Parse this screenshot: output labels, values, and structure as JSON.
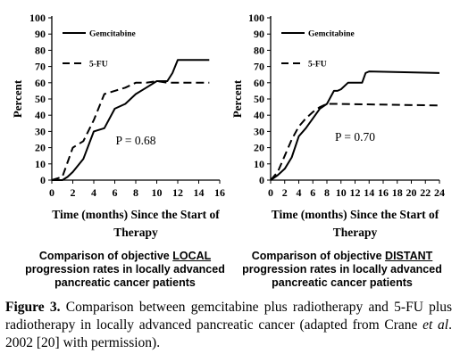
{
  "figure": {
    "caption_label": "Figure 3.",
    "caption_text_1": " Comparison between gemcitabine plus radiotherapy and 5-FU plus radiotherapy in locally advanced pancreatic cancer (adapted from Crane ",
    "caption_italic": "et al",
    "caption_text_2": ". 2002 [20] with permission)."
  },
  "panels": [
    {
      "subcaption_1": "Comparison of objective ",
      "subcaption_emph": "LOCAL",
      "subcaption_2": " progression rates in locally advanced pancreatic cancer patients"
    },
    {
      "subcaption_1": "Comparison of objective ",
      "subcaption_emph": "DISTANT",
      "subcaption_2": " progression rates in locally advanced pancreatic cancer patients"
    }
  ],
  "chart_data": [
    {
      "type": "line",
      "ylabel": "Percent",
      "xlabel": "Time (months) Since the Start of Therapy",
      "xlim": [
        0,
        16
      ],
      "ylim": [
        0,
        100
      ],
      "xticks": [
        0,
        2,
        4,
        6,
        8,
        10,
        12,
        14,
        16
      ],
      "yticks": [
        0,
        10,
        20,
        30,
        40,
        50,
        60,
        70,
        80,
        90,
        100
      ],
      "annotation": "P = 0.68",
      "legend_position": "top-left",
      "series": [
        {
          "name": "Gemcitabine",
          "style": "solid",
          "x": [
            0,
            1,
            1.5,
            2,
            3,
            4,
            5,
            6,
            7,
            8,
            9,
            10,
            11,
            11.5,
            12,
            15
          ],
          "y": [
            0,
            0,
            2,
            5,
            13,
            30,
            32,
            44,
            47,
            53,
            57,
            61,
            61,
            66,
            74,
            74
          ]
        },
        {
          "name": "5-FU",
          "style": "dashed",
          "x": [
            0,
            1,
            2,
            3,
            4,
            5,
            6,
            7,
            8,
            9,
            10,
            11,
            15
          ],
          "y": [
            0,
            2,
            20,
            24,
            37,
            53,
            55,
            57,
            60,
            60,
            61,
            60,
            60
          ]
        }
      ]
    },
    {
      "type": "line",
      "ylabel": "Percent",
      "xlabel": "Time (months) Since the Start of Therapy",
      "xlim": [
        0,
        24
      ],
      "ylim": [
        0,
        100
      ],
      "xticks": [
        0,
        2,
        4,
        6,
        8,
        10,
        12,
        14,
        16,
        18,
        20,
        22,
        24
      ],
      "yticks": [
        0,
        10,
        20,
        30,
        40,
        50,
        60,
        70,
        80,
        90,
        100
      ],
      "annotation": "P = 0.70",
      "legend_position": "top-left",
      "series": [
        {
          "name": "Gemcitabine",
          "style": "solid",
          "x": [
            0,
            1,
            2,
            3,
            4,
            5,
            6,
            7,
            8,
            9,
            9.5,
            10,
            11,
            12,
            13,
            13.5,
            14,
            24
          ],
          "y": [
            0,
            3,
            7,
            14,
            27,
            32,
            38,
            44,
            47,
            55,
            55,
            56,
            60,
            60,
            60,
            66,
            67,
            66
          ]
        },
        {
          "name": "5-FU",
          "style": "dashed",
          "x": [
            0,
            1,
            2,
            3,
            4,
            5,
            6,
            7,
            8,
            9,
            24
          ],
          "y": [
            0,
            5,
            15,
            25,
            33,
            38,
            42,
            45,
            47,
            47,
            46
          ]
        }
      ]
    }
  ]
}
